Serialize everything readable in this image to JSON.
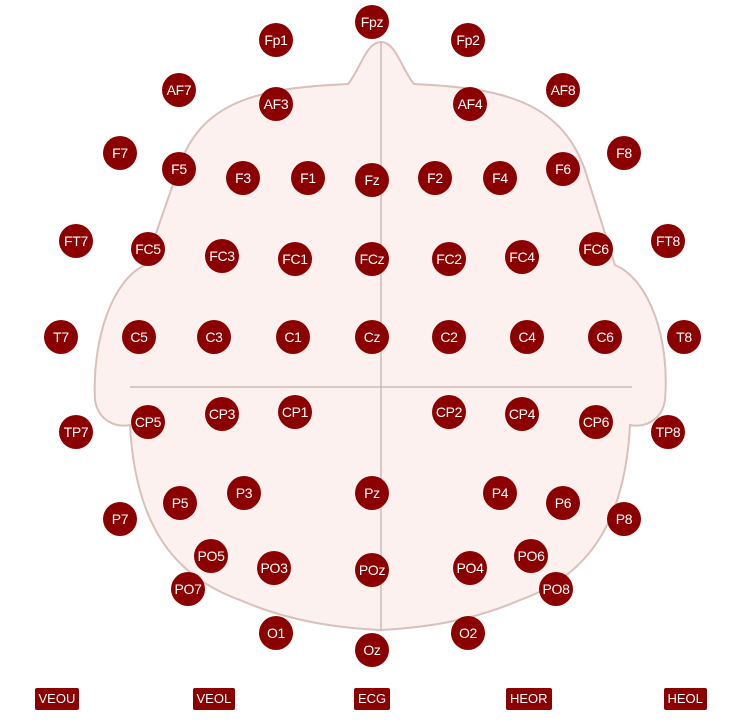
{
  "colors": {
    "electrode": "#8b0000",
    "head_fill": "#fdf1ef",
    "head_stroke": "#d8c0bb",
    "guide": "#c9bcb9"
  },
  "electrodes": [
    {
      "label": "Fpz"
    },
    {
      "label": "Fp1"
    },
    {
      "label": "Fp2"
    },
    {
      "label": "AF7"
    },
    {
      "label": "AF3"
    },
    {
      "label": "AF4"
    },
    {
      "label": "AF8"
    },
    {
      "label": "F7"
    },
    {
      "label": "F5"
    },
    {
      "label": "F3"
    },
    {
      "label": "F1"
    },
    {
      "label": "Fz"
    },
    {
      "label": "F2"
    },
    {
      "label": "F4"
    },
    {
      "label": "F6"
    },
    {
      "label": "F8"
    },
    {
      "label": "FT7"
    },
    {
      "label": "FC5"
    },
    {
      "label": "FC3"
    },
    {
      "label": "FC1"
    },
    {
      "label": "FCz"
    },
    {
      "label": "FC2"
    },
    {
      "label": "FC4"
    },
    {
      "label": "FC6"
    },
    {
      "label": "FT8"
    },
    {
      "label": "T7"
    },
    {
      "label": "C5"
    },
    {
      "label": "C3"
    },
    {
      "label": "C1"
    },
    {
      "label": "Cz"
    },
    {
      "label": "C2"
    },
    {
      "label": "C4"
    },
    {
      "label": "C6"
    },
    {
      "label": "T8"
    },
    {
      "label": "TP7"
    },
    {
      "label": "CP5"
    },
    {
      "label": "CP3"
    },
    {
      "label": "CP1"
    },
    {
      "label": "CP2"
    },
    {
      "label": "CP4"
    },
    {
      "label": "CP6"
    },
    {
      "label": "TP8"
    },
    {
      "label": "P7"
    },
    {
      "label": "P5"
    },
    {
      "label": "P3"
    },
    {
      "label": "Pz"
    },
    {
      "label": "P4"
    },
    {
      "label": "P6"
    },
    {
      "label": "P8"
    },
    {
      "label": "PO5"
    },
    {
      "label": "PO7"
    },
    {
      "label": "PO3"
    },
    {
      "label": "POz"
    },
    {
      "label": "PO4"
    },
    {
      "label": "PO6"
    },
    {
      "label": "PO8"
    },
    {
      "label": "O1"
    },
    {
      "label": "Oz"
    },
    {
      "label": "O2"
    }
  ],
  "aux_channels": [
    {
      "label": "VEOU"
    },
    {
      "label": "VEOL"
    },
    {
      "label": "ECG"
    },
    {
      "label": "HEOR"
    },
    {
      "label": "HEOL"
    }
  ]
}
